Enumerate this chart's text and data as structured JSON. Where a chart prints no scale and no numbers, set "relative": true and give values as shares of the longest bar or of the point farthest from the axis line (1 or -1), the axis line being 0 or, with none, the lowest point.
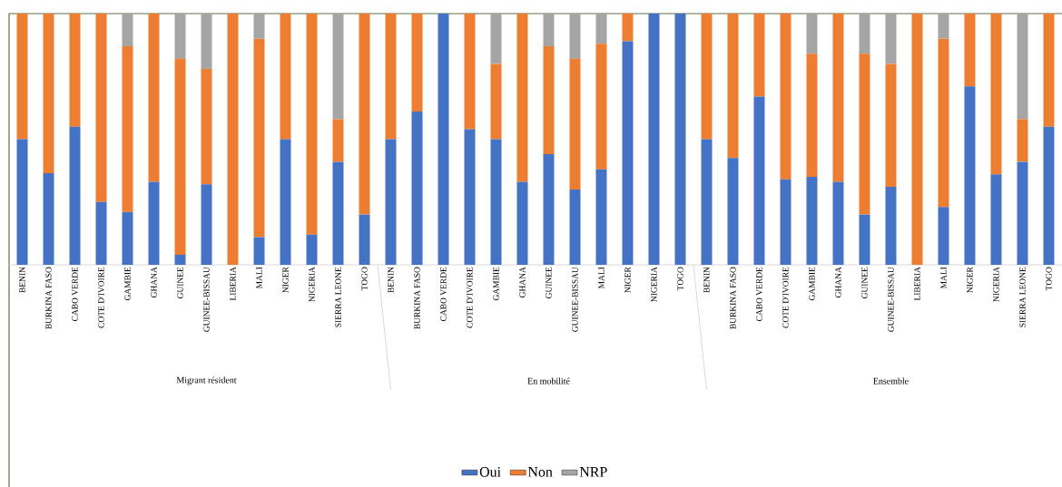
{
  "chart_data": {
    "type": "bar",
    "stacked": true,
    "relative": true,
    "legend": "bottom",
    "categories": [
      "BENIN",
      "BURKINA FASO",
      "CABO VERDE",
      "COTE D'IVOIRE",
      "GAMBIE",
      "GHANA",
      "GUINEE",
      "GUINEE-BISSAU",
      "LIBERIA",
      "MALI",
      "NIGER",
      "NIGERIA",
      "SIERRA LEONE",
      "TOGO",
      "BENIN",
      "BURKINA FASO",
      "CABO VERDE",
      "COTE D'IVOIRE",
      "GAMBIE",
      "GHANA",
      "GUINEE",
      "GUINEE-BISSAU",
      "MALI",
      "NIGER",
      "NIGERIA",
      "TOGO",
      "BENIN",
      "BURKINA FASO",
      "CABO VERDE",
      "COTE D'IVOIRE",
      "GAMBIE",
      "GHANA",
      "GUINEE",
      "GUINEE-BISSAU",
      "LIBERIA",
      "MALI",
      "NIGER",
      "NIGERIA",
      "SIERRA LEONE",
      "TOGO"
    ],
    "series": [
      {
        "name": "Oui",
        "color": "#4472c4",
        "values": [
          0.5,
          0.365,
          0.55,
          0.25,
          0.21,
          0.33,
          0.04,
          0.32,
          0,
          0.11,
          0.5,
          0.12,
          0.41,
          0.2,
          0.5,
          0.61,
          1,
          0.54,
          0.5,
          0.33,
          0.44,
          0.3,
          0.38,
          0.89,
          1,
          1,
          0.5,
          0.425,
          0.67,
          0.34,
          0.35,
          0.33,
          0.2,
          0.31,
          0,
          0.23,
          0.71,
          0.36,
          0.41,
          0.55
        ]
      },
      {
        "name": "Non",
        "color": "#ed7d31",
        "values": [
          0.5,
          0.635,
          0.45,
          0.75,
          0.66,
          0.67,
          0.78,
          0.46,
          1,
          0.79,
          0.5,
          0.88,
          0.17,
          0.8,
          0.5,
          0.39,
          0,
          0.46,
          0.3,
          0.67,
          0.43,
          0.52,
          0.5,
          0.11,
          0,
          0,
          0.5,
          0.575,
          0.33,
          0.66,
          0.49,
          0.67,
          0.64,
          0.49,
          1,
          0.67,
          0.29,
          0.64,
          0.17,
          0.45
        ]
      },
      {
        "name": "NRP",
        "color": "#a5a5a5",
        "values": [
          0,
          0,
          0,
          0,
          0.13,
          0,
          0.18,
          0.22,
          0,
          0.1,
          0,
          0,
          0.42,
          0,
          0,
          0,
          0,
          0,
          0.2,
          0,
          0.13,
          0.18,
          0.12,
          0,
          0,
          0,
          0,
          0,
          0,
          0,
          0.16,
          0,
          0.16,
          0.2,
          0,
          0.1,
          0,
          0,
          0.42,
          0
        ]
      }
    ],
    "annotations": [
      "Migrant résident",
      "En mobilité",
      "Ensemble"
    ]
  }
}
